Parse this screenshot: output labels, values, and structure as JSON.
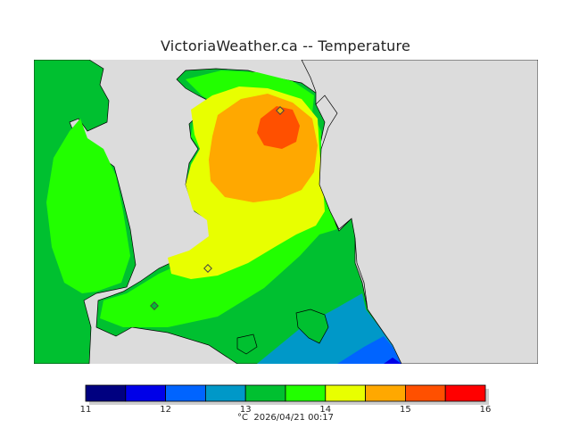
{
  "title": "VictoriaWeather.ca -- Temperature",
  "legend": {
    "ticks": [
      "11",
      "12",
      "13",
      "14",
      "15",
      "16"
    ],
    "colors": [
      "#000080",
      "#0000e8",
      "#0064ff",
      "#0098c8",
      "#00c030",
      "#22ff00",
      "#e8ff00",
      "#ffa800",
      "#ff5000",
      "#ff0000"
    ],
    "unit": "°C",
    "timestamp": "2026/04/21 00:17"
  },
  "map": {
    "land_color": "#dcdcdc",
    "stations": 3
  }
}
